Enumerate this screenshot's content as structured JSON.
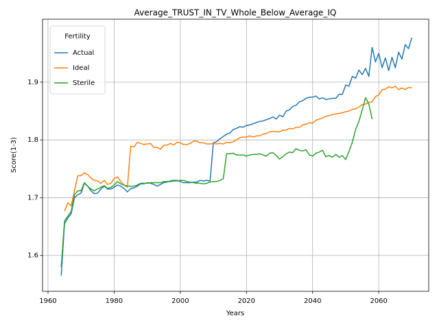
{
  "chart_data": {
    "type": "line",
    "title": "Average_TRUST_IN_TV_Whole_Below_Average_IQ",
    "x_label": "Years",
    "y_label": "Score(1-3)",
    "x": [
      1964,
      1965,
      1966,
      1967,
      1968,
      1969,
      1970,
      1971,
      1972,
      1973,
      1974,
      1975,
      1976,
      1977,
      1978,
      1979,
      1980,
      1981,
      1982,
      1983,
      1984,
      1985,
      1986,
      1987,
      1988,
      1989,
      1990,
      1991,
      1992,
      1993,
      1994,
      1995,
      1996,
      1997,
      1998,
      1999,
      2000,
      2001,
      2002,
      2003,
      2004,
      2005,
      2006,
      2007,
      2008,
      2009,
      2010,
      2011,
      2012,
      2013,
      2014,
      2015,
      2016,
      2017,
      2018,
      2019,
      2020,
      2021,
      2022,
      2023,
      2024,
      2025,
      2026,
      2027,
      2028,
      2029,
      2030,
      2031,
      2032,
      2033,
      2034,
      2035,
      2036,
      2037,
      2038,
      2039,
      2040,
      2041,
      2042,
      2043,
      2044,
      2045,
      2046,
      2047,
      2048,
      2049,
      2050,
      2051,
      2052,
      2053,
      2054,
      2055,
      2056,
      2057,
      2058,
      2059,
      2060,
      2061,
      2062,
      2063,
      2064,
      2065,
      2066,
      2067,
      2068,
      2069,
      2070
    ],
    "series": [
      {
        "name": "Actual",
        "color": "#1f77b4",
        "values": [
          1.565,
          1.655,
          1.665,
          1.672,
          1.7,
          1.705,
          1.708,
          1.725,
          1.72,
          1.712,
          1.707,
          1.708,
          1.715,
          1.72,
          1.715,
          1.715,
          1.718,
          1.722,
          1.72,
          1.716,
          1.71,
          1.716,
          1.717,
          1.72,
          1.724,
          1.724,
          1.726,
          1.725,
          1.723,
          1.72,
          1.723,
          1.726,
          1.727,
          1.729,
          1.73,
          1.73,
          1.728,
          1.726,
          1.726,
          1.726,
          1.727,
          1.727,
          1.73,
          1.729,
          1.73,
          1.729,
          1.795,
          1.797,
          1.802,
          1.806,
          1.81,
          1.812,
          1.818,
          1.82,
          1.823,
          1.822,
          1.825,
          1.826,
          1.828,
          1.83,
          1.832,
          1.833,
          1.835,
          1.837,
          1.84,
          1.836,
          1.843,
          1.84,
          1.85,
          1.852,
          1.858,
          1.86,
          1.866,
          1.868,
          1.872,
          1.874,
          1.874,
          1.876,
          1.871,
          1.873,
          1.87,
          1.871,
          1.872,
          1.872,
          1.879,
          1.879,
          1.895,
          1.893,
          1.91,
          1.907,
          1.921,
          1.913,
          1.924,
          1.91,
          1.96,
          1.935,
          1.95,
          1.925,
          1.942,
          1.92,
          1.943,
          1.925,
          1.952,
          1.94,
          1.965,
          1.958,
          1.977
        ]
      },
      {
        "name": "Ideal",
        "color": "#ff7f0e",
        "values": [
          null,
          1.677,
          1.691,
          1.686,
          1.712,
          1.738,
          1.738,
          1.743,
          1.74,
          1.734,
          1.73,
          1.729,
          1.725,
          1.73,
          1.723,
          1.725,
          1.733,
          1.736,
          1.728,
          1.722,
          1.718,
          1.789,
          1.788,
          1.796,
          1.794,
          1.792,
          1.793,
          1.794,
          1.787,
          1.787,
          1.784,
          1.791,
          1.791,
          1.794,
          1.791,
          1.796,
          1.795,
          1.792,
          1.792,
          1.794,
          1.798,
          1.798,
          1.795,
          1.795,
          1.793,
          1.793,
          1.794,
          1.793,
          1.794,
          1.793,
          1.796,
          1.795,
          1.797,
          1.8,
          1.804,
          1.805,
          1.805,
          1.807,
          1.805,
          1.807,
          1.807,
          1.81,
          1.811,
          1.814,
          1.815,
          1.814,
          1.814,
          1.817,
          1.817,
          1.82,
          1.819,
          1.822,
          1.822,
          1.826,
          1.827,
          1.83,
          1.829,
          1.834,
          1.836,
          1.838,
          1.841,
          1.842,
          1.844,
          1.845,
          1.846,
          1.847,
          1.849,
          1.85,
          1.853,
          1.854,
          1.857,
          1.861,
          1.862,
          1.865,
          1.866,
          1.875,
          1.878,
          1.887,
          1.888,
          1.892,
          1.89,
          1.893,
          1.887,
          1.89,
          1.887,
          1.891,
          1.89
        ]
      },
      {
        "name": "Sterile",
        "color": "#2ca02c",
        "values": [
          1.58,
          1.66,
          1.668,
          1.676,
          1.705,
          1.712,
          1.712,
          1.726,
          1.72,
          1.715,
          1.712,
          1.715,
          1.718,
          1.721,
          1.716,
          1.718,
          1.722,
          1.728,
          1.724,
          1.722,
          1.72,
          1.72,
          1.72,
          1.722,
          1.725,
          1.725,
          1.725,
          1.726,
          1.726,
          1.726,
          1.726,
          1.728,
          1.728,
          1.728,
          1.729,
          1.729,
          1.73,
          1.73,
          1.728,
          1.727,
          1.726,
          1.725,
          1.725,
          1.724,
          1.725,
          1.727,
          1.728,
          1.728,
          1.73,
          1.733,
          1.776,
          1.776,
          1.777,
          1.774,
          1.774,
          1.774,
          1.772,
          1.774,
          1.775,
          1.775,
          1.776,
          1.774,
          1.772,
          1.777,
          1.778,
          1.773,
          1.767,
          1.771,
          1.776,
          1.779,
          1.778,
          1.785,
          1.782,
          1.781,
          1.783,
          1.774,
          1.772,
          1.777,
          1.779,
          1.782,
          1.771,
          1.773,
          1.77,
          1.775,
          1.77,
          1.773,
          1.766,
          1.78,
          1.796,
          1.818,
          1.832,
          1.852,
          1.873,
          1.862,
          1.836,
          null,
          null,
          null,
          null,
          null,
          null,
          null,
          null,
          null,
          null,
          null,
          null
        ]
      }
    ],
    "xlim": [
      1958.35,
      2075.1
    ],
    "xticks": [
      1960,
      1980,
      2000,
      2020,
      2040,
      2060
    ],
    "ylim": [
      1.538,
      2.009
    ],
    "yticks": [
      1.6,
      1.7,
      1.8,
      1.9
    ],
    "grid": true,
    "legend_title": "Fertility",
    "legend_position": "upper left"
  }
}
